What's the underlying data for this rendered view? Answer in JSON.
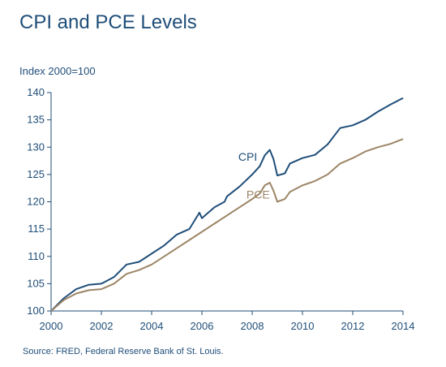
{
  "title": "CPI and PCE Levels",
  "unit_label": "Index 2000=100",
  "source": "Source: FRED, Federal Reserve Bank of St. Louis.",
  "colors": {
    "cpi": "#1f4e79",
    "pce": "#9c8566",
    "axis": "#1f4e79"
  },
  "chart_data": {
    "type": "line",
    "title": "CPI and PCE Levels",
    "ylabel": "Index 2000=100",
    "xlabel": "",
    "xlim": [
      2000,
      2014
    ],
    "ylim": [
      100,
      140
    ],
    "grid": false,
    "x_ticks": [
      2000,
      2002,
      2004,
      2006,
      2008,
      2010,
      2012,
      2014
    ],
    "y_ticks": [
      100,
      105,
      110,
      115,
      120,
      125,
      130,
      135,
      140
    ],
    "series": [
      {
        "name": "CPI",
        "label_position": [
          2008.2,
          127.5
        ],
        "x": [
          2000,
          2000.5,
          2001,
          2001.5,
          2002,
          2002.5,
          2003,
          2003.5,
          2004,
          2004.5,
          2005,
          2005.5,
          2005.9,
          2006,
          2006.5,
          2006.9,
          2007,
          2007.5,
          2008,
          2008.3,
          2008.5,
          2008.7,
          2008.85,
          2009,
          2009.3,
          2009.5,
          2010,
          2010.5,
          2011,
          2011.5,
          2012,
          2012.5,
          2013,
          2013.5,
          2014
        ],
        "values": [
          100,
          102.3,
          104.0,
          104.8,
          105.0,
          106.2,
          108.5,
          109.0,
          110.5,
          112.0,
          114.0,
          115.0,
          118.0,
          117.0,
          119.0,
          120.0,
          121.0,
          122.8,
          125.0,
          126.5,
          128.5,
          129.5,
          127.8,
          124.8,
          125.2,
          127.0,
          128.0,
          128.6,
          130.5,
          133.5,
          134.0,
          135.0,
          136.5,
          137.8,
          139.0
        ]
      },
      {
        "name": "PCE",
        "label_position": [
          2008.7,
          120.6
        ],
        "x": [
          2000,
          2000.5,
          2001,
          2001.5,
          2002,
          2002.5,
          2003,
          2003.5,
          2004,
          2004.5,
          2005,
          2005.5,
          2006,
          2006.5,
          2007,
          2007.5,
          2008,
          2008.3,
          2008.5,
          2008.7,
          2008.85,
          2009,
          2009.3,
          2009.5,
          2010,
          2010.5,
          2011,
          2011.5,
          2012,
          2012.5,
          2013,
          2013.5,
          2014
        ],
        "values": [
          100,
          102.0,
          103.2,
          103.8,
          104.0,
          105.0,
          106.8,
          107.5,
          108.5,
          110.0,
          111.5,
          113.0,
          114.5,
          116.0,
          117.5,
          119.0,
          120.5,
          121.5,
          123.0,
          123.5,
          122.0,
          120.0,
          120.5,
          121.8,
          123.0,
          123.8,
          125.0,
          127.0,
          128.0,
          129.2,
          130.0,
          130.6,
          131.5
        ]
      }
    ]
  }
}
